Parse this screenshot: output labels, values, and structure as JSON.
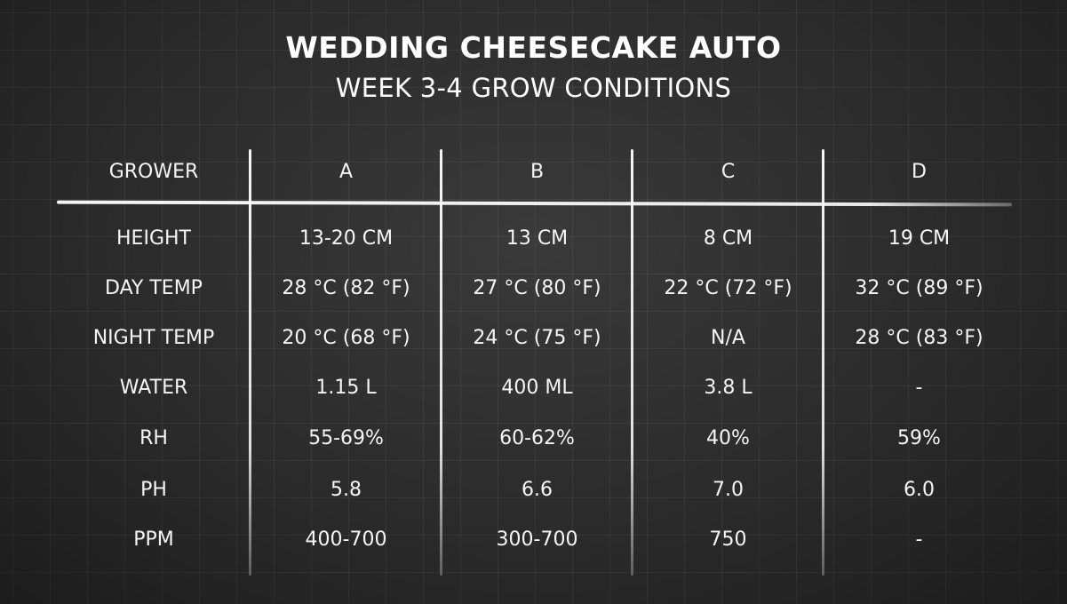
{
  "title": "WEDDING CHEESECAKE AUTO",
  "subtitle": "WEEK 3-4 GROW CONDITIONS",
  "table": {
    "header": [
      "GROWER",
      "A",
      "B",
      "C",
      "D"
    ],
    "rows": [
      [
        "HEIGHT",
        "13-20 CM",
        "13 CM",
        "8 CM",
        "19 CM"
      ],
      [
        "DAY TEMP",
        "28 °C (82 °F)",
        "27 °C (80 °F)",
        "22 °C (72 °F)",
        "32 °C (89 °F)"
      ],
      [
        "NIGHT TEMP",
        "20 °C (68 °F)",
        "24 °C (75 °F)",
        "N/A",
        "28 °C (83 °F)"
      ],
      [
        "WATER",
        "1.15 L",
        "400 ML",
        "3.8 L",
        "-"
      ],
      [
        "RH",
        "55-69%",
        "60-62%",
        "40%",
        "59%"
      ],
      [
        "PH",
        "5.8",
        "6.6",
        "7.0",
        "6.0"
      ],
      [
        "PPM",
        "400-700",
        "300-700",
        "750",
        "-"
      ]
    ]
  }
}
